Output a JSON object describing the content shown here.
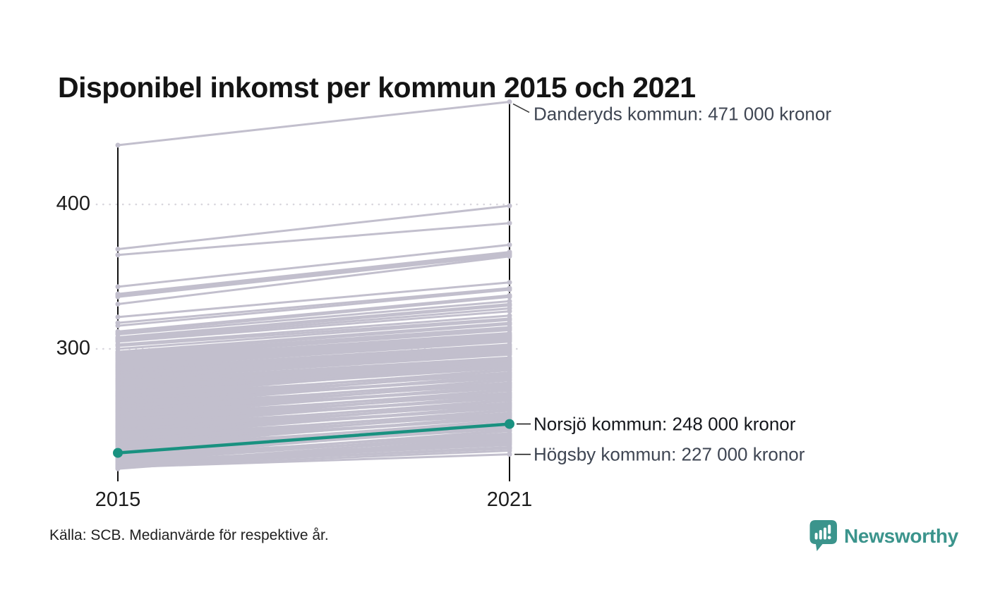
{
  "header": {
    "title": "Disponibel inkomst per kommun 2015 och 2021"
  },
  "annotations": {
    "danderyd": {
      "label": "Danderyds kommun: 471 000 kronor",
      "value": 471
    },
    "norsjo": {
      "label": "Norsjö kommun: 248 000 kronor",
      "value": 248
    },
    "hogsby": {
      "label": "Högsby kommun: 227 000 kronor",
      "value": 227
    }
  },
  "footer": {
    "source": "Källa: SCB. Medianvärde för respektive år.",
    "brand": "Newsworthy"
  },
  "colors": {
    "highlight": "#199180",
    "background_line": "#c2bfcd",
    "axis": "#111111",
    "gridline": "#d8d6dd",
    "annotation_gray": "#3f4653",
    "annotation_dark": "#15171c",
    "brand_teal": "#3b948c"
  },
  "chart_data": {
    "type": "line",
    "variant": "slopegraph",
    "title": "Disponibel inkomst per kommun 2015 och 2021",
    "x_labels": [
      "2015",
      "2021"
    ],
    "y_axis": {
      "ticks": [
        {
          "value": 400,
          "label": "400"
        },
        {
          "value": 300,
          "label": "300"
        }
      ],
      "range": [
        217,
        471
      ],
      "values_shown_as": "tusental kronor (annotations show full kronor)"
    },
    "legend": "none",
    "grid": "horizontal-dotted",
    "highlight": {
      "name": "Norsjö kommun",
      "values": [
        228,
        248
      ],
      "color": "#199180"
    },
    "labeled": {
      "danderyd": {
        "name": "Danderyds kommun",
        "values": [
          441,
          471
        ]
      },
      "norsjo": {
        "name": "Norsjö kommun",
        "values": [
          228,
          248
        ]
      },
      "hogsby": {
        "name": "Högsby kommun",
        "values": [
          218,
          227
        ]
      }
    },
    "background_lines_estimated": true,
    "lines": [
      [
        441,
        471
      ],
      [
        369,
        399
      ],
      [
        365,
        387
      ],
      [
        343,
        372
      ],
      [
        338,
        367
      ],
      [
        337,
        366
      ],
      [
        336,
        365
      ],
      [
        331,
        364
      ],
      [
        322,
        346
      ],
      [
        318,
        342
      ],
      [
        316,
        341
      ],
      [
        312,
        337
      ],
      [
        311,
        336
      ],
      [
        310,
        333
      ],
      [
        308,
        331
      ],
      [
        307,
        330
      ],
      [
        306,
        328
      ],
      [
        305,
        326
      ],
      [
        303,
        323
      ],
      [
        302,
        321
      ],
      [
        300,
        320
      ],
      [
        298,
        318
      ],
      [
        297,
        317
      ],
      [
        296,
        315
      ],
      [
        295,
        314
      ],
      [
        294,
        313
      ],
      [
        293,
        311
      ],
      [
        292,
        310
      ],
      [
        291,
        309
      ],
      [
        290,
        308
      ],
      [
        289,
        307
      ],
      [
        288,
        306
      ],
      [
        287,
        305
      ],
      [
        286,
        303
      ],
      [
        285,
        302
      ],
      [
        284,
        301
      ],
      [
        283,
        300
      ],
      [
        282,
        299
      ],
      [
        281,
        298
      ],
      [
        280,
        297
      ],
      [
        279,
        296
      ],
      [
        278,
        294
      ],
      [
        277,
        293
      ],
      [
        276,
        292
      ],
      [
        275,
        291
      ],
      [
        274,
        290
      ],
      [
        273,
        289
      ],
      [
        272,
        288
      ],
      [
        271,
        290
      ],
      [
        270.3,
        287.3
      ],
      [
        269.6,
        290.6
      ],
      [
        268.9,
        286.9
      ],
      [
        268.2,
        288.2
      ],
      [
        267.5,
        283.5
      ],
      [
        266.8,
        288.8
      ],
      [
        266.1,
        285.1
      ],
      [
        265.4,
        282.4
      ],
      [
        264.7,
        285.7
      ],
      [
        264,
        283
      ],
      [
        263.3,
        280.3
      ],
      [
        262.6,
        283.6
      ],
      [
        261.9,
        279.9
      ],
      [
        261.2,
        281.2
      ],
      [
        260.5,
        276.5
      ],
      [
        259.8,
        281.8
      ],
      [
        259.1,
        278.1
      ],
      [
        258.4,
        275.4
      ],
      [
        257.7,
        278.7
      ],
      [
        257,
        276
      ],
      [
        256.3,
        273.3
      ],
      [
        255.6,
        276.6
      ],
      [
        254.9,
        272.9
      ],
      [
        254.2,
        274.2
      ],
      [
        253.5,
        269.5
      ],
      [
        252.8,
        274.8
      ],
      [
        252.1,
        271.1
      ],
      [
        251.4,
        268.4
      ],
      [
        250.7,
        271.7
      ],
      [
        250,
        269
      ],
      [
        249.3,
        266.3
      ],
      [
        248.6,
        269.6
      ],
      [
        247.9,
        265.9
      ],
      [
        247.2,
        267.2
      ],
      [
        246.5,
        262.5
      ],
      [
        245.8,
        267.8
      ],
      [
        245.1,
        264.1
      ],
      [
        244.4,
        261.4
      ],
      [
        243.7,
        264.7
      ],
      [
        243,
        262
      ],
      [
        242.3,
        259.3
      ],
      [
        241.6,
        262.6
      ],
      [
        240.9,
        258.9
      ],
      [
        240.2,
        260.2
      ],
      [
        239.5,
        255.5
      ],
      [
        238.8,
        260.8
      ],
      [
        238.1,
        257.1
      ],
      [
        237.4,
        254.4
      ],
      [
        236.7,
        257.7
      ],
      [
        236,
        255
      ],
      [
        235.3,
        252.3
      ],
      [
        234.6,
        255.6
      ],
      [
        233.9,
        251.9
      ],
      [
        233.2,
        253.2
      ],
      [
        232.5,
        248.5
      ],
      [
        231.8,
        253.8
      ],
      [
        231.1,
        250.1
      ],
      [
        230.4,
        247.4
      ],
      [
        229.7,
        250.7
      ],
      [
        229,
        248
      ],
      [
        228.3,
        245.3
      ],
      [
        227.6,
        248.6
      ],
      [
        226.9,
        244.9
      ],
      [
        226.2,
        246.2
      ],
      [
        225.5,
        241.5
      ],
      [
        224.8,
        246.8
      ],
      [
        224.1,
        243.1
      ],
      [
        223.4,
        240.4
      ],
      [
        222.7,
        243.7
      ],
      [
        222,
        241
      ],
      [
        220,
        240
      ],
      [
        219.2,
        238
      ],
      [
        218.6,
        236
      ],
      [
        218,
        235
      ],
      [
        217.5,
        239
      ],
      [
        217,
        237
      ],
      [
        219,
        232
      ],
      [
        220.5,
        233.5
      ],
      [
        221.2,
        234.5
      ],
      [
        219.6,
        231
      ],
      [
        218.3,
        229.5
      ],
      [
        221.6,
        236.5
      ],
      [
        218,
        227
      ]
    ]
  }
}
